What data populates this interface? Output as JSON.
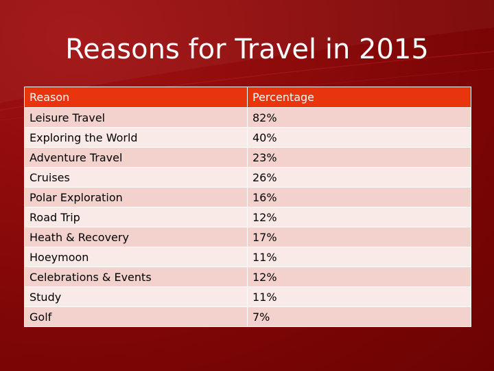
{
  "slide": {
    "title": "Reasons for Travel in 2015"
  },
  "table": {
    "headers": [
      "Reason",
      "Percentage"
    ],
    "rows": [
      [
        "Leisure Travel",
        "82%"
      ],
      [
        "Exploring the World",
        "40%"
      ],
      [
        "Adventure Travel",
        "23%"
      ],
      [
        "Cruises",
        "26%"
      ],
      [
        "Polar Exploration",
        "16%"
      ],
      [
        "Road Trip",
        "12%"
      ],
      [
        "Heath & Recovery",
        "17%"
      ],
      [
        "Hoeymoon",
        "11%"
      ],
      [
        "Celebrations & Events",
        "12%"
      ],
      [
        "Study",
        "11%"
      ],
      [
        "Golf",
        "7%"
      ]
    ]
  },
  "colors": {
    "background": "#8e0b0b",
    "header_fill": "#e8350d",
    "row_band_dark": "#f3d1cd",
    "row_band_light": "#f9e9e7"
  }
}
